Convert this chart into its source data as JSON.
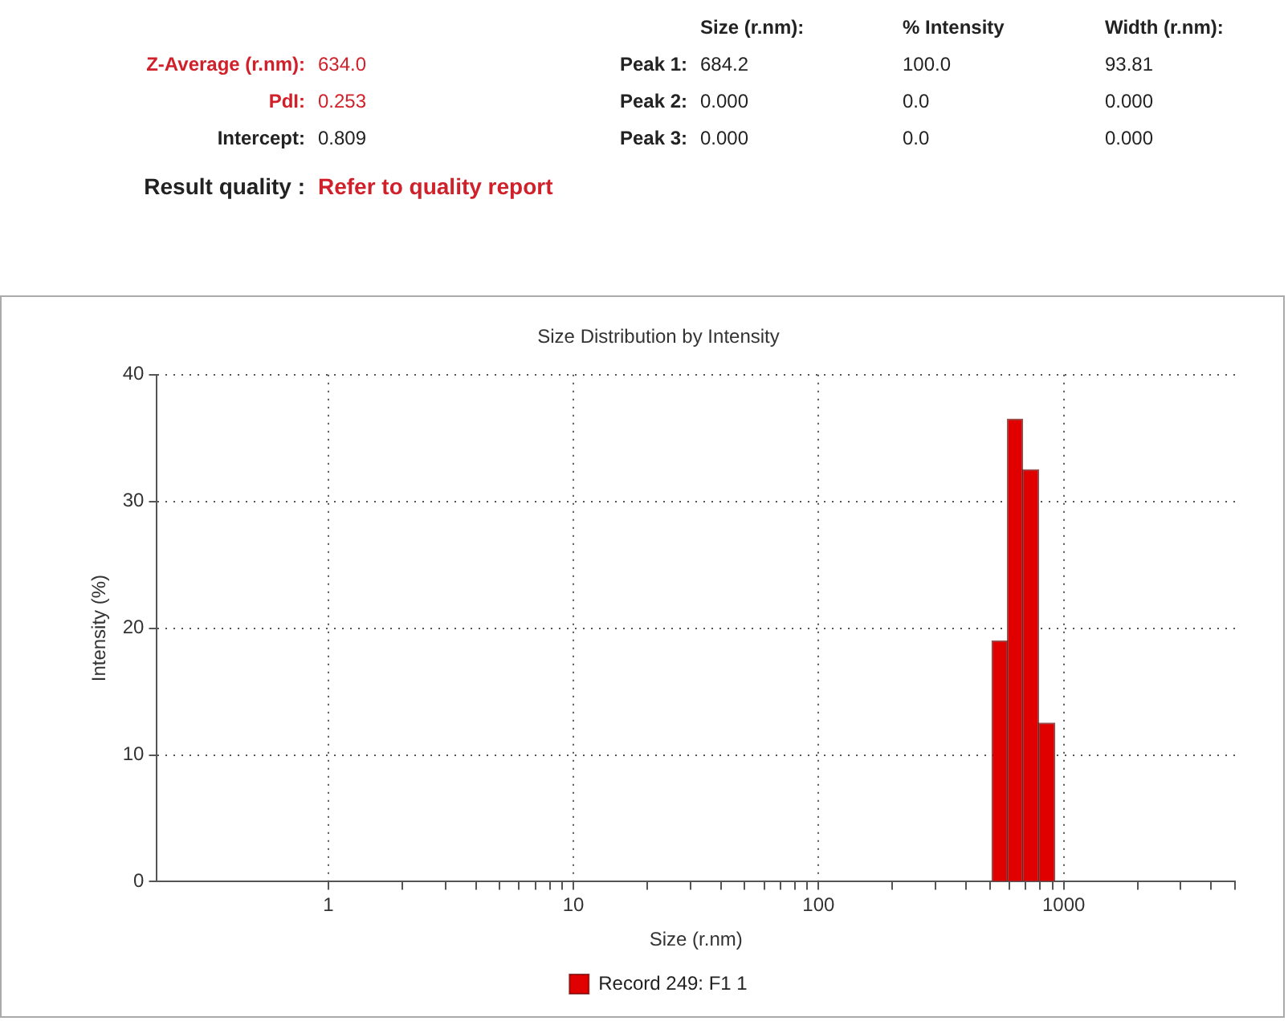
{
  "chart_data": {
    "type": "histogram",
    "title": "Size Distribution by Intensity",
    "xlabel": "Size (r.nm)",
    "ylabel": "Intensity (%)",
    "annotations": [
      "Size (r.nm):",
      "% Intensity",
      "Width (r.nm):",
      "Z-Average (r.nm):",
      "634.0",
      "Peak 1:",
      "684.2",
      "100.0",
      "93.81",
      "PdI:",
      "0.253",
      "Peak 2:",
      "0.000",
      "0.0",
      "0.000",
      "Intercept:",
      "0.809",
      "Peak 3:",
      "0.000",
      "0.0",
      "0.000",
      "Result quality :",
      "Refer to quality report"
    ],
    "bins": [
      510,
      590,
      680,
      790,
      920
    ],
    "series": [
      {
        "name": "Record 249: F1 1",
        "color": "#e00000",
        "values": [
          19,
          36.5,
          32.5,
          12.5
        ]
      }
    ],
    "log": "x",
    "xlim": [
      0.2,
      5000
    ],
    "xticks": [
      1,
      {
        "value": 2,
        "label": null
      },
      {
        "value": 3,
        "label": null
      },
      {
        "value": 4,
        "label": null
      },
      {
        "value": 5,
        "label": null
      },
      {
        "value": 6,
        "label": null
      },
      {
        "value": 7,
        "label": null
      },
      {
        "value": 8,
        "label": null
      },
      {
        "value": 9,
        "label": null
      },
      10,
      {
        "value": 20,
        "label": null
      },
      {
        "value": 30,
        "label": null
      },
      {
        "value": 40,
        "label": null
      },
      {
        "value": 50,
        "label": null
      },
      {
        "value": 60,
        "label": null
      },
      {
        "value": 70,
        "label": null
      },
      {
        "value": 80,
        "label": null
      },
      {
        "value": 90,
        "label": null
      },
      100,
      {
        "value": 200,
        "label": null
      },
      {
        "value": 300,
        "label": null
      },
      {
        "value": 400,
        "label": null
      },
      {
        "value": 500,
        "label": null
      },
      {
        "value": 600,
        "label": null
      },
      {
        "value": 700,
        "label": null
      },
      {
        "value": 800,
        "label": null
      },
      {
        "value": 900,
        "label": null
      },
      1000,
      {
        "value": 2000,
        "label": null
      },
      {
        "value": 3000,
        "label": null
      },
      {
        "value": 4000,
        "label": null
      },
      {
        "value": 5000,
        "label": null
      }
    ],
    "ylim": [
      0,
      40
    ],
    "yticks": [
      0,
      10,
      20,
      30,
      40
    ],
    "grid": true,
    "legend": "bottom"
  }
}
